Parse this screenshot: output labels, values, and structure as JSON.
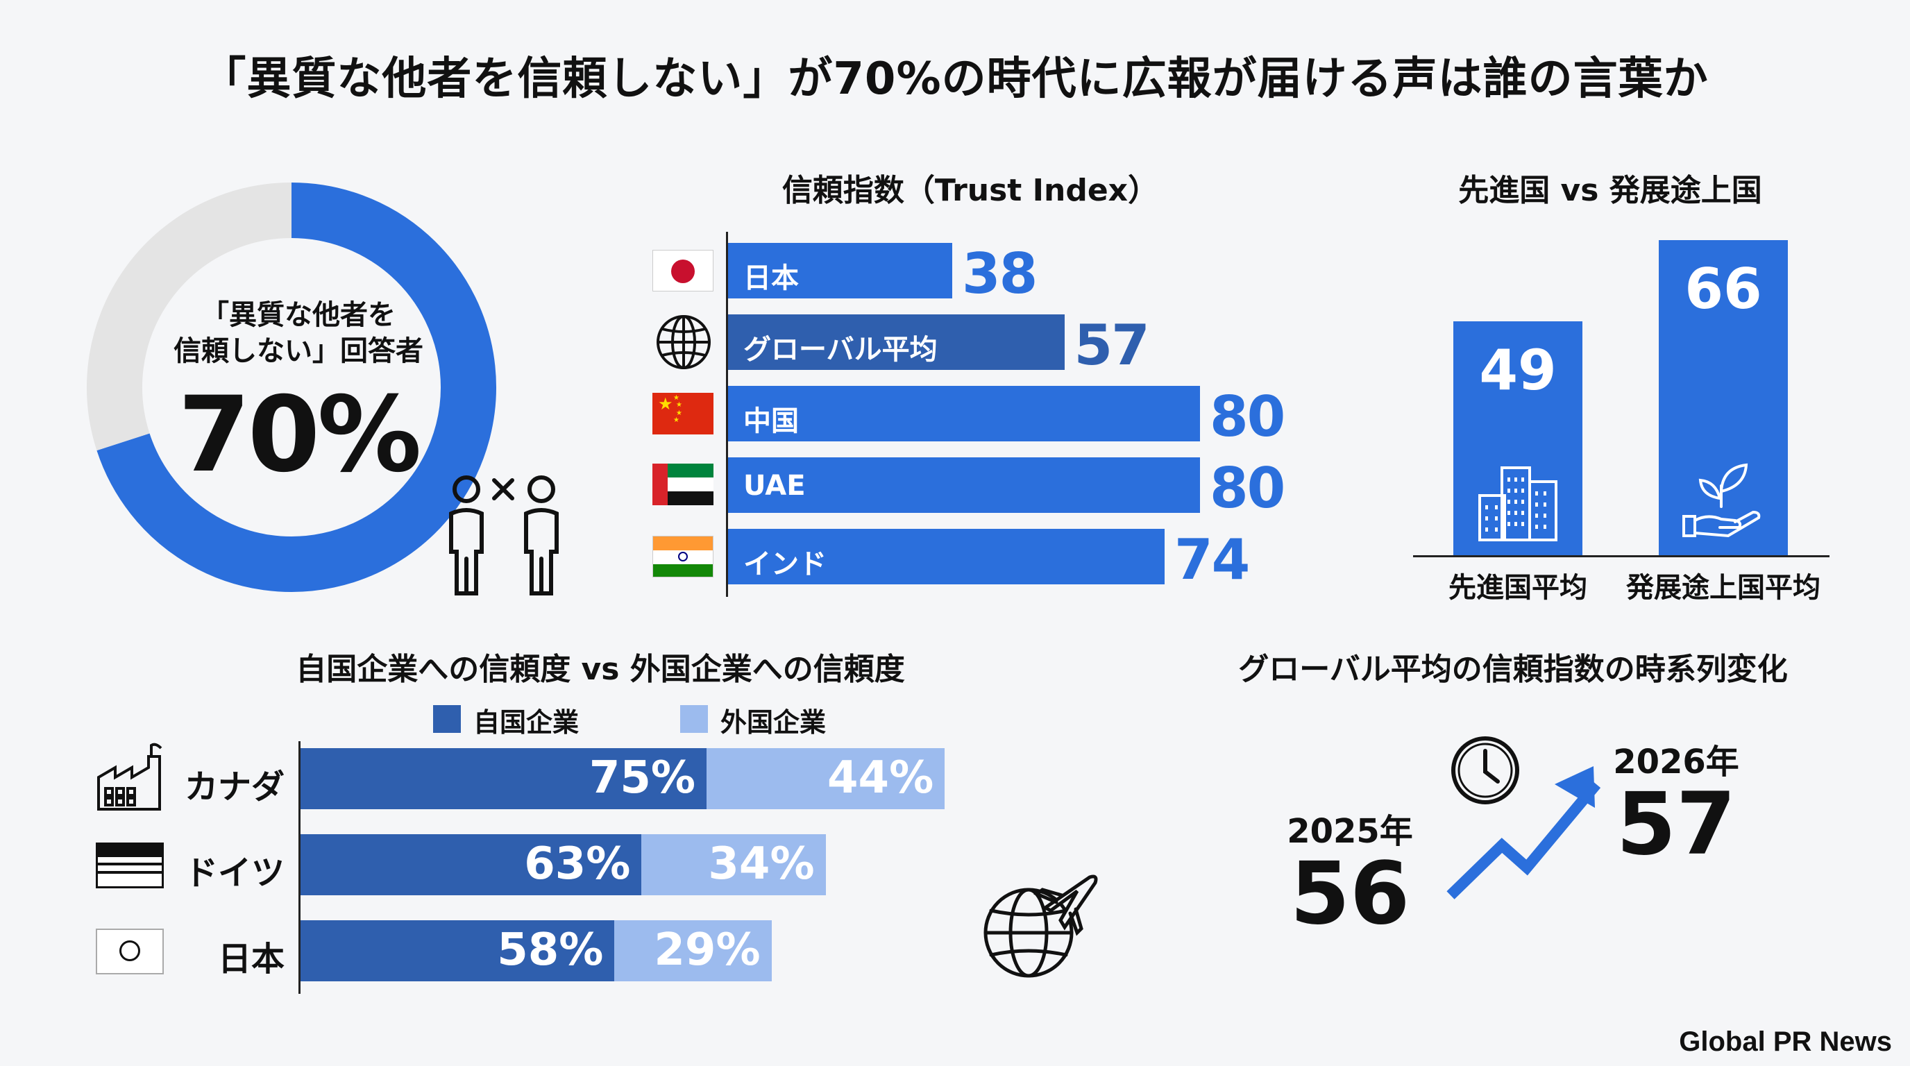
{
  "page_title": "「異質な他者を信頼しない」が70%の時代に広報が届ける声は誰の言葉か",
  "credit": "Global PR News",
  "colors": {
    "blue": "#2b6fdc",
    "dark_blue": "#2f5fae",
    "light_blue": "#9cbbee",
    "grey": "#e4e4e4"
  },
  "chart_data": [
    {
      "type": "pie",
      "title": "",
      "center_label_line1": "「異質な他者を",
      "center_label_line2": "信頼しない」回答者",
      "center_value": "70%",
      "values": [
        70,
        30
      ],
      "labels": [
        "信頼しない",
        ""
      ]
    },
    {
      "type": "bar",
      "orientation": "horizontal",
      "title": "信頼指数（Trust Index）",
      "categories": [
        "日本",
        "グローバル平均",
        "中国",
        "UAE",
        "インド"
      ],
      "values": [
        38,
        57,
        80,
        80,
        74
      ],
      "xlim": [
        0,
        80
      ]
    },
    {
      "type": "bar",
      "title": "先進国 vs 発展途上国",
      "categories": [
        "先進国平均",
        "発展途上国平均"
      ],
      "values": [
        49,
        66
      ],
      "ylim": [
        0,
        66
      ]
    },
    {
      "type": "bar",
      "orientation": "horizontal",
      "stacked": true,
      "title": "自国企業への信頼度 vs 外国企業への信頼度",
      "categories": [
        "カナダ",
        "ドイツ",
        "日本"
      ],
      "series": [
        {
          "name": "自国企業",
          "values": [
            75,
            63,
            58
          ]
        },
        {
          "name": "外国企業",
          "values": [
            44,
            34,
            29
          ]
        }
      ],
      "legend": "top"
    },
    {
      "type": "line",
      "title": "グローバル平均の信頼指数の時系列変化",
      "x": [
        "2025年",
        "2026年"
      ],
      "values": [
        56,
        57
      ]
    }
  ]
}
